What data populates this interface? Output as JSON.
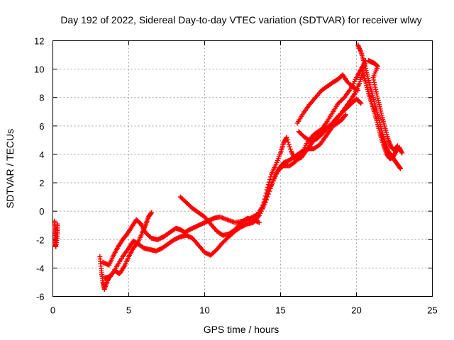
{
  "chart_data": {
    "type": "scatter",
    "title": "Day 192 of 2022, Sidereal Day-to-day VTEC variation (SDTVAR) for receiver wlwy",
    "xlabel": "GPS time / hours",
    "ylabel": "SDTVAR / TECUs",
    "xlim": [
      0,
      25
    ],
    "ylim": [
      -6,
      12
    ],
    "xticks": [
      0,
      5,
      10,
      15,
      20,
      25
    ],
    "yticks": [
      -6,
      -4,
      -2,
      0,
      2,
      4,
      6,
      8,
      10,
      12
    ],
    "grid": true,
    "marker": "+",
    "color": "#ff0000",
    "series": [
      {
        "name": "track-0",
        "points": [
          [
            0.1,
            -0.7
          ],
          [
            0.15,
            -1.3
          ],
          [
            0.2,
            -1.8
          ],
          [
            0.15,
            -2.3
          ],
          [
            0.2,
            -2.5
          ],
          [
            0.3,
            -1.6
          ],
          [
            0.3,
            -0.9
          ]
        ]
      },
      {
        "name": "track-1",
        "points": [
          [
            3.1,
            -3.2
          ],
          [
            3.2,
            -4.2
          ],
          [
            3.3,
            -5.0
          ],
          [
            3.4,
            -5.5
          ],
          [
            3.6,
            -4.9
          ],
          [
            3.8,
            -4.5
          ],
          [
            4.1,
            -4.2
          ],
          [
            4.4,
            -4.4
          ],
          [
            4.7,
            -3.9
          ],
          [
            5.0,
            -3.2
          ],
          [
            5.3,
            -2.6
          ],
          [
            5.6,
            -2.2
          ],
          [
            5.9,
            -1.5
          ],
          [
            6.1,
            -1.0
          ],
          [
            6.3,
            -0.4
          ],
          [
            6.5,
            -0.1
          ]
        ]
      },
      {
        "name": "track-2",
        "points": [
          [
            3.3,
            -3.6
          ],
          [
            3.7,
            -3.8
          ],
          [
            4.0,
            -3.1
          ],
          [
            4.3,
            -2.5
          ],
          [
            4.6,
            -2.0
          ],
          [
            4.9,
            -1.6
          ],
          [
            5.2,
            -1.1
          ],
          [
            5.5,
            -0.6
          ],
          [
            5.8,
            -0.9
          ],
          [
            6.1,
            -1.5
          ],
          [
            6.5,
            -1.9
          ],
          [
            6.9,
            -2.0
          ],
          [
            7.3,
            -1.8
          ],
          [
            7.7,
            -1.5
          ],
          [
            8.1,
            -1.2
          ],
          [
            8.4,
            -1.3
          ],
          [
            8.7,
            -1.5
          ],
          [
            9.0,
            -1.3
          ],
          [
            9.4,
            -1.1
          ],
          [
            9.8,
            -0.9
          ],
          [
            10.2,
            -0.7
          ],
          [
            10.6,
            -0.5
          ],
          [
            11.0,
            -0.4
          ],
          [
            11.5,
            -0.6
          ],
          [
            12.0,
            -0.8
          ],
          [
            12.5,
            -0.7
          ],
          [
            13.0,
            -0.5
          ],
          [
            13.5,
            -0.2
          ],
          [
            13.9,
            0.5
          ],
          [
            14.3,
            1.6
          ],
          [
            14.6,
            2.4
          ],
          [
            14.9,
            3.0
          ],
          [
            15.2,
            3.4
          ],
          [
            15.6,
            3.6
          ],
          [
            16.0,
            3.9
          ],
          [
            16.4,
            4.2
          ],
          [
            16.8,
            4.4
          ],
          [
            17.2,
            4.4
          ],
          [
            17.6,
            4.7
          ],
          [
            18.0,
            5.3
          ],
          [
            18.4,
            5.9
          ],
          [
            18.8,
            6.6
          ],
          [
            19.2,
            7.2
          ],
          [
            19.6,
            7.8
          ],
          [
            19.9,
            8.3
          ],
          [
            20.2,
            9.0
          ],
          [
            20.4,
            9.8
          ],
          [
            20.6,
            10.5
          ]
        ]
      },
      {
        "name": "track-3",
        "points": [
          [
            3.4,
            -4.7
          ],
          [
            3.8,
            -4.6
          ],
          [
            4.2,
            -3.9
          ],
          [
            4.6,
            -3.2
          ],
          [
            5.0,
            -2.6
          ],
          [
            5.3,
            -2.1
          ],
          [
            5.6,
            -2.3
          ],
          [
            6.0,
            -2.6
          ],
          [
            6.4,
            -2.7
          ],
          [
            6.8,
            -2.8
          ],
          [
            7.2,
            -2.6
          ],
          [
            7.6,
            -2.3
          ],
          [
            8.0,
            -2.0
          ],
          [
            8.4,
            -1.8
          ],
          [
            8.8,
            -1.7
          ],
          [
            9.2,
            -1.9
          ],
          [
            9.6,
            -2.4
          ],
          [
            10.0,
            -2.9
          ],
          [
            10.4,
            -3.1
          ],
          [
            10.8,
            -2.7
          ],
          [
            11.2,
            -2.2
          ],
          [
            11.6,
            -1.8
          ],
          [
            12.0,
            -1.4
          ],
          [
            12.4,
            -1.1
          ],
          [
            12.8,
            -0.9
          ],
          [
            13.2,
            -0.8
          ],
          [
            13.6,
            -0.3
          ],
          [
            14.0,
            0.6
          ],
          [
            14.4,
            1.8
          ],
          [
            14.8,
            2.8
          ],
          [
            15.2,
            3.2
          ],
          [
            15.6,
            3.2
          ],
          [
            16.0,
            3.5
          ],
          [
            16.4,
            4.1
          ],
          [
            16.8,
            4.9
          ],
          [
            17.2,
            5.4
          ],
          [
            17.6,
            5.7
          ],
          [
            18.0,
            5.8
          ],
          [
            18.4,
            6.2
          ],
          [
            18.8,
            6.7
          ],
          [
            19.2,
            7.1
          ],
          [
            19.6,
            7.5
          ],
          [
            20.0,
            7.9
          ],
          [
            20.3,
            7.6
          ]
        ]
      },
      {
        "name": "track-4",
        "points": [
          [
            8.4,
            1.0
          ],
          [
            8.8,
            0.6
          ],
          [
            9.2,
            0.2
          ],
          [
            9.6,
            -0.1
          ],
          [
            10.0,
            -0.4
          ],
          [
            10.4,
            -0.9
          ],
          [
            10.8,
            -1.4
          ],
          [
            11.2,
            -1.7
          ],
          [
            11.6,
            -1.6
          ],
          [
            12.0,
            -1.3
          ],
          [
            12.4,
            -0.8
          ],
          [
            12.8,
            -0.5
          ],
          [
            13.2,
            -0.6
          ],
          [
            13.6,
            -0.8
          ]
        ]
      },
      {
        "name": "track-5",
        "points": [
          [
            13.8,
            0.2
          ],
          [
            14.1,
            1.5
          ],
          [
            14.4,
            2.6
          ],
          [
            14.7,
            3.3
          ],
          [
            15.0,
            4.1
          ],
          [
            15.2,
            4.8
          ],
          [
            15.4,
            5.2
          ],
          [
            15.7,
            4.2
          ],
          [
            16.0,
            3.6
          ],
          [
            16.4,
            3.8
          ],
          [
            16.8,
            4.4
          ],
          [
            17.2,
            5.0
          ],
          [
            17.6,
            5.6
          ],
          [
            18.0,
            6.2
          ],
          [
            18.4,
            6.9
          ],
          [
            18.8,
            7.6
          ],
          [
            19.2,
            8.0
          ],
          [
            19.6,
            8.6
          ],
          [
            20.0,
            9.4
          ],
          [
            20.3,
            10.0
          ],
          [
            20.6,
            10.6
          ]
        ]
      },
      {
        "name": "track-6",
        "points": [
          [
            16.1,
            6.2
          ],
          [
            16.5,
            6.9
          ],
          [
            16.9,
            7.5
          ],
          [
            17.3,
            8.0
          ],
          [
            17.7,
            8.5
          ],
          [
            18.1,
            8.8
          ],
          [
            18.5,
            9.1
          ],
          [
            18.8,
            9.3
          ],
          [
            19.1,
            9.6
          ],
          [
            19.4,
            9.1
          ],
          [
            19.8,
            8.7
          ],
          [
            20.1,
            8.5
          ]
        ]
      },
      {
        "name": "track-7",
        "points": [
          [
            16.2,
            5.6
          ],
          [
            16.6,
            5.2
          ],
          [
            17.0,
            4.9
          ],
          [
            17.4,
            5.1
          ],
          [
            17.8,
            5.5
          ],
          [
            18.2,
            6.0
          ],
          [
            18.6,
            6.1
          ],
          [
            19.0,
            6.4
          ],
          [
            19.3,
            6.8
          ]
        ]
      },
      {
        "name": "track-8",
        "points": [
          [
            20.1,
            11.7
          ],
          [
            20.3,
            11.2
          ],
          [
            20.5,
            10.5
          ],
          [
            20.7,
            9.6
          ],
          [
            20.9,
            8.8
          ],
          [
            21.1,
            8.0
          ],
          [
            21.3,
            7.2
          ],
          [
            21.5,
            6.4
          ],
          [
            21.7,
            5.5
          ],
          [
            21.9,
            4.8
          ],
          [
            22.1,
            4.2
          ],
          [
            22.3,
            3.9
          ],
          [
            22.5,
            3.6
          ],
          [
            22.7,
            3.3
          ],
          [
            22.9,
            3.0
          ]
        ]
      },
      {
        "name": "track-9",
        "points": [
          [
            20.4,
            9.8
          ],
          [
            20.6,
            9.1
          ],
          [
            20.8,
            8.3
          ],
          [
            21.0,
            7.6
          ],
          [
            21.2,
            6.9
          ],
          [
            21.4,
            6.1
          ],
          [
            21.6,
            5.3
          ],
          [
            21.8,
            4.6
          ],
          [
            22.0,
            4.0
          ],
          [
            22.2,
            3.7
          ],
          [
            22.4,
            3.8
          ],
          [
            22.6,
            4.2
          ],
          [
            22.8,
            4.5
          ],
          [
            23.0,
            4.1
          ]
        ]
      },
      {
        "name": "track-10",
        "points": [
          [
            20.8,
            10.6
          ],
          [
            21.0,
            10.5
          ],
          [
            21.2,
            10.4
          ],
          [
            21.4,
            10.2
          ],
          [
            21.1,
            9.4
          ],
          [
            21.3,
            8.4
          ],
          [
            21.5,
            7.5
          ],
          [
            21.7,
            6.6
          ],
          [
            21.9,
            5.8
          ],
          [
            22.1,
            5.0
          ],
          [
            22.3,
            4.5
          ],
          [
            22.5,
            4.3
          ],
          [
            22.7,
            4.6
          ]
        ]
      }
    ]
  }
}
